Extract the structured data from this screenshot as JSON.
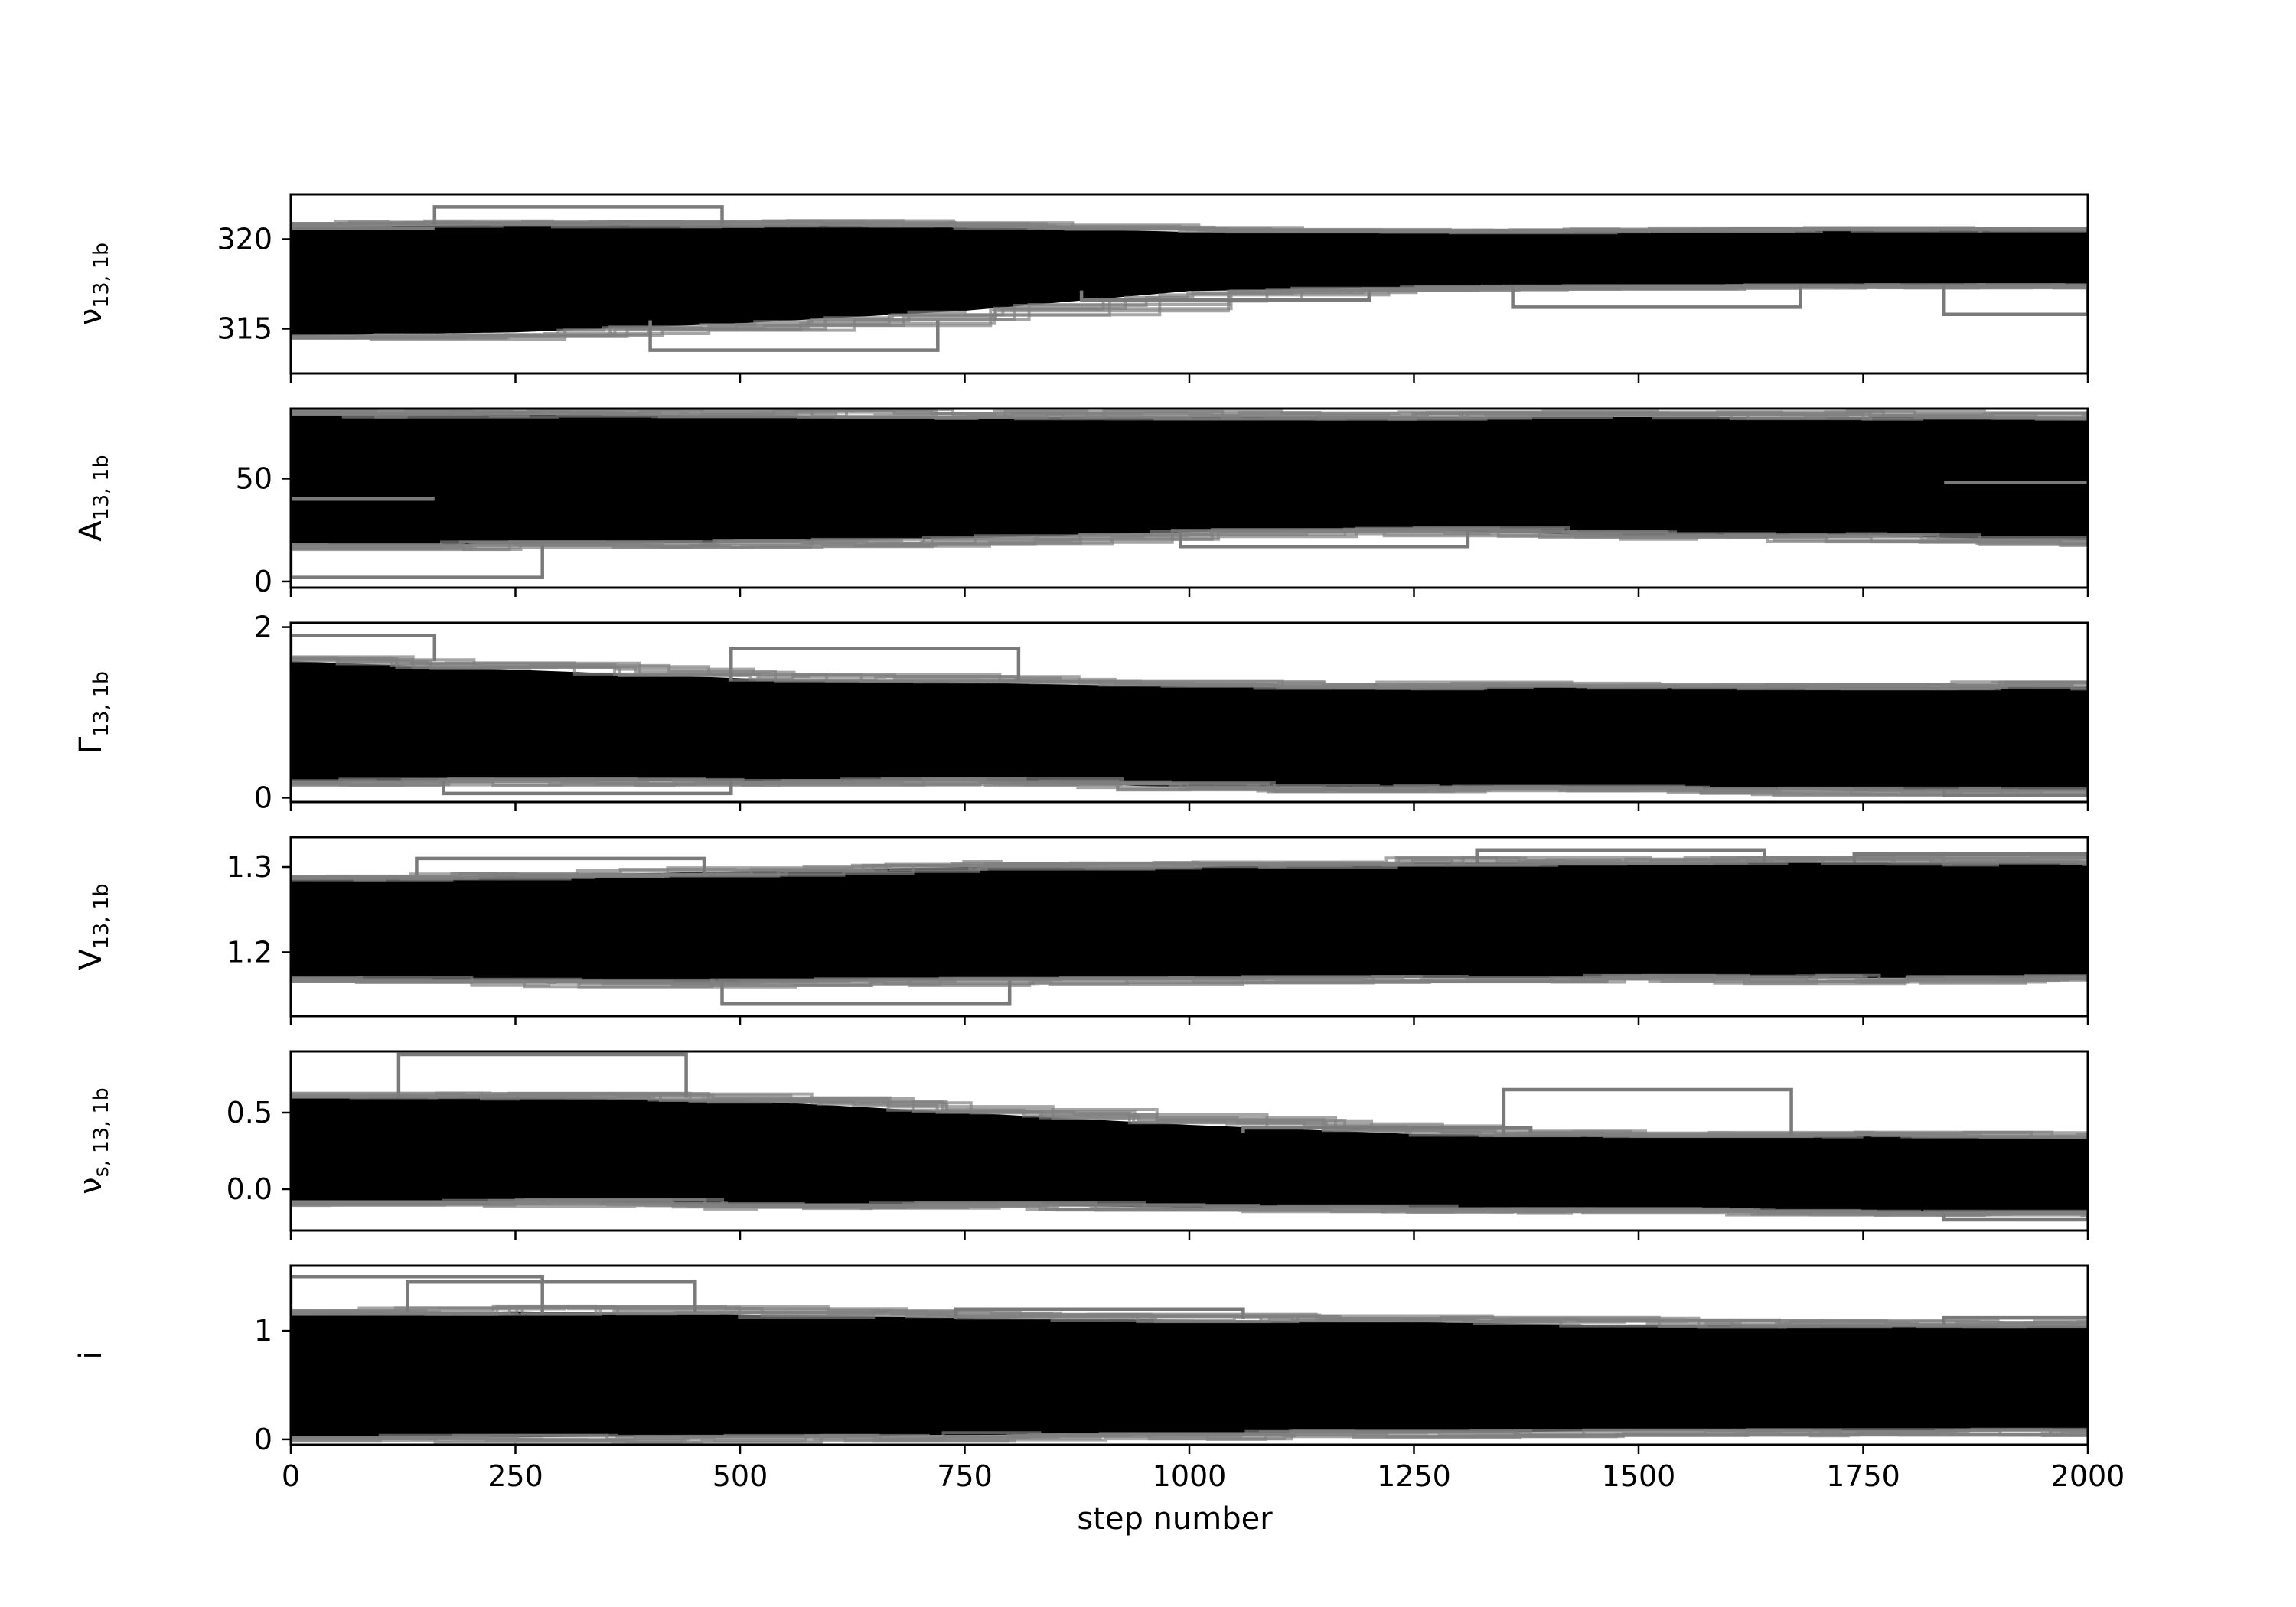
{
  "chart_data": {
    "type": "line",
    "description_kind": "MCMC walker trace plot, 6 stacked panels sharing x-axis",
    "x": {
      "label": "step number",
      "range": [
        0,
        2000
      ],
      "ticks": [
        0,
        250,
        500,
        750,
        1000,
        1250,
        1500,
        1750,
        2000
      ]
    },
    "panels": [
      {
        "id": "nu",
        "ylabel": {
          "main": "ν",
          "sub": "13, 1b"
        },
        "ylim": [
          312.5,
          322.5
        ],
        "ticks": [
          315,
          320
        ],
        "tick_labels": [
          "315",
          "320"
        ],
        "band": {
          "x": [
            0,
            250,
            500,
            750,
            1000,
            1250,
            1500,
            1750,
            2000
          ],
          "lo": [
            314.6,
            314.8,
            315.3,
            316.0,
            317.1,
            317.3,
            317.4,
            317.4,
            317.4
          ],
          "hi": [
            320.7,
            320.8,
            320.8,
            320.7,
            320.4,
            320.4,
            320.5,
            320.5,
            320.5
          ]
        },
        "stragglers": [
          [
            0,
            320.6
          ],
          [
            320,
            321.8
          ],
          [
            560,
            313.8
          ],
          [
            1040,
            316.6
          ],
          [
            1520,
            316.2
          ],
          [
            2000,
            315.8
          ]
        ]
      },
      {
        "id": "A",
        "ylabel": {
          "main": "A",
          "sub": "13, 1b"
        },
        "ylim": [
          -3,
          84
        ],
        "ticks": [
          0,
          50
        ],
        "tick_labels": [
          "0",
          "50"
        ],
        "band": {
          "x": [
            0,
            250,
            500,
            750,
            1000,
            1250,
            1500,
            1750,
            2000
          ],
          "lo": [
            18,
            18,
            19,
            21,
            24,
            25,
            22,
            22,
            20
          ],
          "hi": [
            81,
            81,
            81,
            80,
            80,
            80,
            80,
            80,
            80
          ]
        },
        "stragglers": [
          [
            0,
            40
          ],
          [
            120,
            2
          ],
          [
            1150,
            17
          ],
          [
            2000,
            48
          ]
        ]
      },
      {
        "id": "gamma",
        "ylabel": {
          "main": "Γ",
          "sub": "13, 1b"
        },
        "ylim": [
          -0.05,
          2.05
        ],
        "ticks": [
          0,
          2
        ],
        "tick_labels": [
          "0",
          "2"
        ],
        "band": {
          "x": [
            0,
            250,
            500,
            750,
            1000,
            1250,
            1500,
            1750,
            2000
          ],
          "lo": [
            0.2,
            0.2,
            0.2,
            0.2,
            0.12,
            0.12,
            0.1,
            0.08,
            0.08
          ],
          "hi": [
            1.6,
            1.5,
            1.4,
            1.35,
            1.3,
            1.3,
            1.3,
            1.3,
            1.3
          ]
        },
        "stragglers": [
          [
            0,
            1.9
          ],
          [
            650,
            1.75
          ],
          [
            330,
            0.05
          ],
          [
            2000,
            0.03
          ]
        ]
      },
      {
        "id": "V",
        "ylabel": {
          "main": "V",
          "sub": "13, 1b"
        },
        "ylim": [
          1.125,
          1.335
        ],
        "ticks": [
          1.2,
          1.3
        ],
        "tick_labels": [
          "1.2",
          "1.3"
        ],
        "band": {
          "x": [
            0,
            250,
            500,
            750,
            1000,
            1250,
            1500,
            1750,
            2000
          ],
          "lo": [
            1.17,
            1.165,
            1.165,
            1.168,
            1.17,
            1.17,
            1.17,
            1.17,
            1.17
          ],
          "hi": [
            1.285,
            1.29,
            1.295,
            1.3,
            1.3,
            1.305,
            1.305,
            1.305,
            1.305
          ]
        },
        "stragglers": [
          [
            640,
            1.14
          ],
          [
            1480,
            1.32
          ],
          [
            1900,
            1.315
          ],
          [
            300,
            1.31
          ]
        ]
      },
      {
        "id": "nus",
        "ylabel": {
          "main": "ν",
          "sub": "s, 13, 1b"
        },
        "ylim": [
          -0.27,
          0.9
        ],
        "ticks": [
          0.0,
          0.5
        ],
        "tick_labels": [
          "0.0",
          "0.5"
        ],
        "band": {
          "x": [
            0,
            250,
            500,
            750,
            1000,
            1250,
            1500,
            1750,
            2000
          ],
          "lo": [
            -0.08,
            -0.08,
            -0.1,
            -0.1,
            -0.12,
            -0.13,
            -0.14,
            -0.15,
            -0.15
          ],
          "hi": [
            0.6,
            0.6,
            0.58,
            0.5,
            0.42,
            0.36,
            0.35,
            0.35,
            0.35
          ]
        },
        "stragglers": [
          [
            280,
            0.88
          ],
          [
            1510,
            0.65
          ],
          [
            1220,
            0.4
          ],
          [
            2000,
            -0.2
          ]
        ]
      },
      {
        "id": "i",
        "ylabel": {
          "main": "i",
          "sub": ""
        },
        "ylim": [
          -0.05,
          1.6
        ],
        "ticks": [
          0,
          1
        ],
        "tick_labels": [
          "0",
          "1"
        ],
        "band": {
          "x": [
            0,
            250,
            500,
            750,
            1000,
            1250,
            1500,
            1750,
            2000
          ],
          "lo": [
            0.02,
            0.02,
            0.03,
            0.04,
            0.05,
            0.06,
            0.08,
            0.08,
            0.08
          ],
          "hi": [
            1.15,
            1.18,
            1.15,
            1.12,
            1.1,
            1.08,
            1.05,
            1.05,
            1.05
          ]
        },
        "stragglers": [
          [
            120,
            1.5
          ],
          [
            290,
            1.45
          ],
          [
            900,
            1.2
          ],
          [
            2000,
            1.12
          ]
        ]
      }
    ]
  }
}
